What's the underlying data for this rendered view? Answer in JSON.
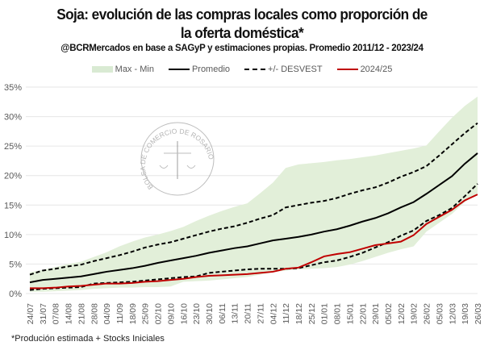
{
  "title_line1": "Soja: evolución de las compras locales como proporción de",
  "title_line2": "la oferta doméstica*",
  "subtitle": "@BCRMercados  en base a SAGyP y estimaciones propias.  Promedio 2011/12 - 2023/24",
  "footnote": "*Produción estimada + Stocks Iniciales",
  "watermark": "BOLSA DE COMERCIO DE ROSARIO",
  "colors": {
    "band": "#e2efd9",
    "promedio": "#000000",
    "desvest": "#000000",
    "current": "#c00000",
    "grid": "#e6e6e6"
  },
  "chart_data": {
    "type": "line",
    "title": "Soja: evolución de las compras locales como proporción de la oferta doméstica*",
    "xlabel": "",
    "ylabel": "",
    "ylim": [
      0,
      35
    ],
    "yticks": [
      "0%",
      "5%",
      "10%",
      "15%",
      "20%",
      "25%",
      "30%",
      "35%"
    ],
    "grid": true,
    "legend_position": "top",
    "legend": [
      "Max - Min",
      "Promedio",
      "+/- DESVEST",
      "2024/25"
    ],
    "categories": [
      "24/07",
      "31/07",
      "07/08",
      "14/08",
      "21/08",
      "28/08",
      "04/09",
      "11/09",
      "18/09",
      "25/09",
      "02/10",
      "09/10",
      "16/10",
      "23/10",
      "30/10",
      "06/11",
      "13/11",
      "20/11",
      "27/11",
      "04/12",
      "11/12",
      "18/12",
      "25/12",
      "01/01",
      "08/01",
      "15/01",
      "22/01",
      "29/01",
      "05/02",
      "12/02",
      "19/02",
      "26/02",
      "05/03",
      "12/03",
      "19/03",
      "26/03"
    ],
    "band": {
      "name": "Max - Min",
      "max": [
        3.6,
        4.0,
        4.5,
        5.0,
        5.4,
        6.2,
        7.0,
        8.0,
        8.8,
        9.5,
        10.0,
        10.6,
        11.3,
        12.3,
        13.2,
        14.0,
        14.7,
        15.3,
        17.0,
        18.8,
        21.3,
        21.9,
        22.1,
        22.3,
        22.6,
        22.8,
        23.1,
        23.4,
        23.8,
        24.2,
        24.6,
        25.1,
        27.5,
        29.8,
        31.8,
        33.4
      ],
      "min": [
        0.3,
        0.3,
        0.4,
        0.5,
        0.6,
        0.8,
        0.9,
        1.0,
        1.0,
        1.1,
        1.1,
        1.2,
        2.0,
        2.1,
        2.2,
        2.4,
        2.6,
        2.8,
        3.2,
        3.6,
        3.9,
        4.1,
        4.2,
        4.3,
        4.5,
        4.9,
        5.5,
        6.2,
        6.9,
        7.5,
        8.0,
        10.5,
        12.0,
        13.5,
        15.5,
        17.0
      ]
    },
    "series": [
      {
        "name": "Promedio",
        "style": "solid",
        "values": [
          1.9,
          2.3,
          2.5,
          2.7,
          2.9,
          3.3,
          3.7,
          4.0,
          4.3,
          4.7,
          5.2,
          5.6,
          6.0,
          6.4,
          6.9,
          7.3,
          7.7,
          8.0,
          8.5,
          9.0,
          9.3,
          9.6,
          10.0,
          10.5,
          10.9,
          11.5,
          12.2,
          12.8,
          13.6,
          14.6,
          15.5,
          16.9,
          18.4,
          19.9,
          22.0,
          23.8
        ]
      },
      {
        "name": "+DESVEST",
        "style": "dashed",
        "values": [
          3.2,
          3.9,
          4.2,
          4.6,
          4.9,
          5.5,
          6.0,
          6.5,
          7.1,
          7.8,
          8.3,
          8.7,
          9.3,
          9.9,
          10.5,
          11.0,
          11.4,
          12.0,
          12.7,
          13.3,
          14.6,
          15.0,
          15.4,
          15.7,
          16.2,
          16.9,
          17.5,
          18.0,
          18.8,
          19.8,
          20.6,
          21.6,
          23.4,
          25.3,
          27.2,
          28.9
        ]
      },
      {
        "name": "-DESVEST",
        "style": "dashed",
        "values": [
          0.6,
          0.8,
          0.9,
          1.0,
          1.1,
          1.7,
          1.8,
          1.9,
          2.0,
          2.2,
          2.4,
          2.6,
          2.8,
          2.9,
          3.5,
          3.7,
          3.9,
          4.1,
          4.2,
          4.2,
          4.2,
          4.3,
          4.8,
          5.3,
          5.6,
          6.2,
          6.9,
          7.8,
          8.7,
          9.8,
          10.7,
          12.3,
          13.3,
          14.5,
          16.5,
          18.6
        ]
      },
      {
        "name": "2024/25",
        "style": "solid",
        "values": [
          0.9,
          0.9,
          1.0,
          1.2,
          1.3,
          1.5,
          1.7,
          1.7,
          1.8,
          2.0,
          2.1,
          2.3,
          2.5,
          2.8,
          3.0,
          3.1,
          3.2,
          3.3,
          3.5,
          3.7,
          4.2,
          4.4,
          5.3,
          6.3,
          6.7,
          7.0,
          7.6,
          8.2,
          8.5,
          8.8,
          9.9,
          11.8,
          13.0,
          14.2,
          15.8,
          16.8
        ]
      }
    ]
  }
}
